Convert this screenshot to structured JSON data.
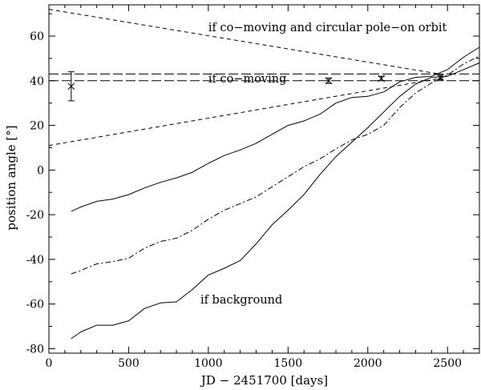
{
  "chart_data": {
    "type": "line",
    "xlabel": "JD − 2451700 [days]",
    "ylabel": "position angle [°]",
    "xlim": [
      0,
      2700
    ],
    "ylim": [
      -82,
      74
    ],
    "xticks": [
      0,
      500,
      1000,
      1500,
      2000,
      2500
    ],
    "yticks": [
      -80,
      -60,
      -40,
      -20,
      0,
      20,
      40,
      60
    ],
    "grid": false,
    "annotations": [
      {
        "text": "if co−moving and circular pole−on orbit",
        "x": 1000,
        "y": 64
      },
      {
        "text": "if co−moving",
        "x": 1000,
        "y": 41
      },
      {
        "text": "if background",
        "x": 950,
        "y": -58
      }
    ],
    "series": [
      {
        "style": "long-dash",
        "x": [
          0,
          2700
        ],
        "y": [
          43,
          43
        ]
      },
      {
        "style": "long-dash",
        "x": [
          0,
          2700
        ],
        "y": [
          40,
          40
        ]
      },
      {
        "style": "short-dash",
        "x": [
          0,
          2450
        ],
        "y": [
          72,
          43
        ]
      },
      {
        "style": "short-dash",
        "x": [
          0,
          2450
        ],
        "y": [
          11,
          41
        ]
      },
      {
        "style": "solid",
        "x": [
          140,
          200,
          300,
          400,
          500,
          600,
          700,
          800,
          900,
          1000,
          1100,
          1200,
          1300,
          1400,
          1500,
          1600,
          1700,
          1800,
          1900,
          2000,
          2100,
          2200,
          2300,
          2400,
          2500,
          2600,
          2700
        ],
        "y": [
          -18.5,
          -16.5,
          -14,
          -13,
          -11,
          -8,
          -5.5,
          -3.5,
          -1,
          3,
          6.5,
          9,
          12,
          16,
          20,
          22,
          25,
          30,
          32.5,
          33,
          35,
          39.5,
          41.5,
          42,
          45,
          50.5,
          55
        ]
      },
      {
        "style": "dash-dot",
        "x": [
          140,
          200,
          300,
          400,
          500,
          600,
          700,
          800,
          900,
          1000,
          1100,
          1200,
          1300,
          1400,
          1500,
          1600,
          1700,
          1800,
          1900,
          2000,
          2100,
          2200,
          2300,
          2400,
          2500,
          2600,
          2700
        ],
        "y": [
          -46.5,
          -45,
          -42,
          -41,
          -39.5,
          -35,
          -32,
          -30.5,
          -27,
          -22,
          -18,
          -15,
          -12,
          -7.5,
          -3,
          1.5,
          5,
          9.5,
          13.5,
          16,
          20,
          28,
          34.5,
          39,
          42.5,
          47.5,
          51
        ]
      },
      {
        "style": "solid",
        "x": [
          140,
          200,
          300,
          400,
          500,
          600,
          700,
          800,
          900,
          1000,
          1100,
          1200,
          1300,
          1400,
          1500,
          1600,
          1700,
          1800,
          1900,
          2000,
          2100,
          2200,
          2300,
          2400,
          2500,
          2600,
          2700
        ],
        "y": [
          -75.5,
          -72.5,
          -69.5,
          -69.5,
          -67.5,
          -62,
          -59.5,
          -59,
          -53.5,
          -47,
          -44,
          -40.5,
          -33,
          -24.5,
          -18,
          -11,
          -2,
          6,
          12.5,
          19,
          26,
          33,
          38.5,
          41.5,
          42,
          45,
          48
        ]
      }
    ],
    "points": [
      {
        "x": 140,
        "y": 37.5,
        "yerr": 6.5,
        "marker": "x"
      },
      {
        "x": 1755,
        "y": 40.0,
        "yerr": 1.2,
        "marker": "x"
      },
      {
        "x": 2085,
        "y": 41.0,
        "yerr": 1.0,
        "marker": "x"
      },
      {
        "x": 2455,
        "y": 41.5,
        "yerr": 1.0,
        "marker": "x"
      }
    ]
  }
}
